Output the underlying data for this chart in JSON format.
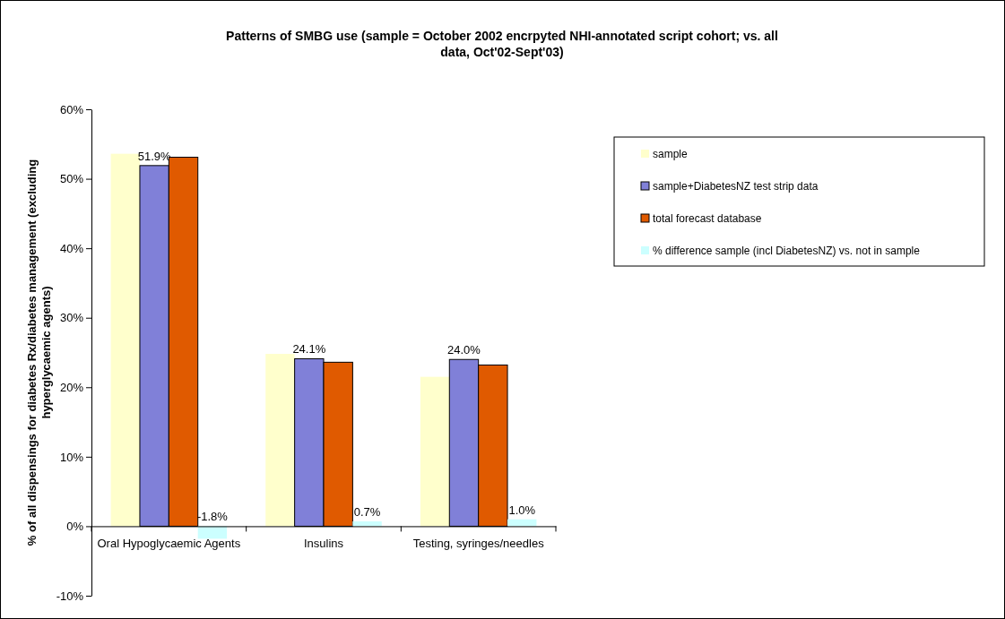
{
  "chart_data": {
    "type": "bar",
    "title": "Patterns of SMBG use (sample = October 2002 encrpyted NHI-annotated script cohort; vs. all data, Oct'02-Sept'03)",
    "ylabel": "% of all dispensings for diabetes Rx/diabetes management (excluding hyperglycaemic agents)",
    "categories": [
      "Oral Hypoglycaemic Agents",
      "Insulins",
      "Testing, syringes/needles"
    ],
    "series": [
      {
        "name": "sample",
        "color": "#ffffcc",
        "values": [
          53.6,
          24.8,
          21.5
        ]
      },
      {
        "name": "sample+DiabetesNZ test strip data",
        "color": "#8080d8",
        "values": [
          51.9,
          24.1,
          24.0
        ],
        "value_labels": [
          "51.9%",
          "24.1%",
          "24.0%"
        ]
      },
      {
        "name": "total forecast database",
        "color": "#e05a00",
        "values": [
          53.1,
          23.6,
          23.2
        ]
      },
      {
        "name": "% difference sample (incl DiabetesNZ) vs. not in sample",
        "color": "#ccffff",
        "values": [
          -1.8,
          0.7,
          1.0
        ],
        "value_labels": [
          "-1.8%",
          "0.7%",
          "1.0%"
        ]
      }
    ],
    "ylim": [
      -10,
      60
    ],
    "yticks": [
      {
        "value": -10,
        "label": "-10%"
      },
      {
        "value": 0,
        "label": "0%"
      },
      {
        "value": 10,
        "label": "10%"
      },
      {
        "value": 20,
        "label": "20%"
      },
      {
        "value": 30,
        "label": "30%"
      },
      {
        "value": 40,
        "label": "40%"
      },
      {
        "value": 50,
        "label": "50%"
      },
      {
        "value": 60,
        "label": "60%"
      }
    ],
    "legend": "top right",
    "grid": false
  }
}
